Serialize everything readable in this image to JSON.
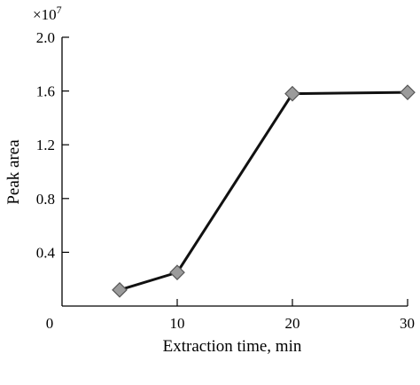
{
  "chart_data": {
    "type": "line",
    "title": "",
    "xlabel": "Extraction time, min",
    "ylabel": "Peak area",
    "y_multiplier": "×10",
    "y_multiplier_exp": "7",
    "xlim": [
      0,
      30
    ],
    "ylim": [
      0,
      2.0
    ],
    "x_ticks": [
      {
        "value": 0,
        "label": "0"
      },
      {
        "value": 10,
        "label": "10"
      },
      {
        "value": 20,
        "label": "20"
      },
      {
        "value": 30,
        "label": "30"
      }
    ],
    "y_ticks": [
      {
        "value": 0.4,
        "label": "0.4"
      },
      {
        "value": 0.8,
        "label": "0.8"
      },
      {
        "value": 1.2,
        "label": "1.2"
      },
      {
        "value": 1.6,
        "label": "1.6"
      },
      {
        "value": 2.0,
        "label": "2.0"
      }
    ],
    "grid": false,
    "series": [
      {
        "x": [
          5,
          10,
          20,
          30
        ],
        "y": [
          0.12,
          0.25,
          1.58,
          1.59
        ],
        "marker": "diamond",
        "line_color": "#111111",
        "marker_color": "#9b9b9b"
      }
    ]
  }
}
